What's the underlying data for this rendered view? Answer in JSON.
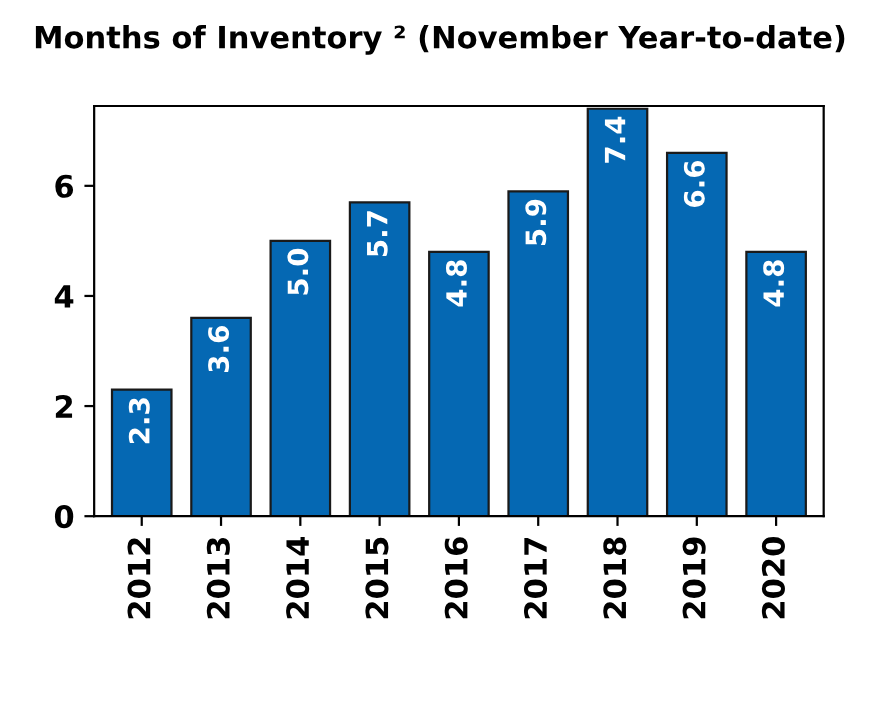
{
  "chart_data": {
    "type": "bar",
    "title": "Months of Inventory ² (November Year-to-date)",
    "categories": [
      "2012",
      "2013",
      "2014",
      "2015",
      "2016",
      "2017",
      "2018",
      "2019",
      "2020"
    ],
    "values": [
      2.3,
      3.6,
      5.0,
      5.7,
      4.8,
      5.9,
      7.4,
      6.6,
      4.8
    ],
    "value_labels": [
      "2.3",
      "3.6",
      "5.0",
      "5.7",
      "4.8",
      "5.9",
      "7.4",
      "6.6",
      "4.8"
    ],
    "color": "#0568b3",
    "ylim": [
      0,
      7.45
    ],
    "yticks": [
      0,
      2,
      4,
      6
    ],
    "grid": false,
    "legend": false
  }
}
